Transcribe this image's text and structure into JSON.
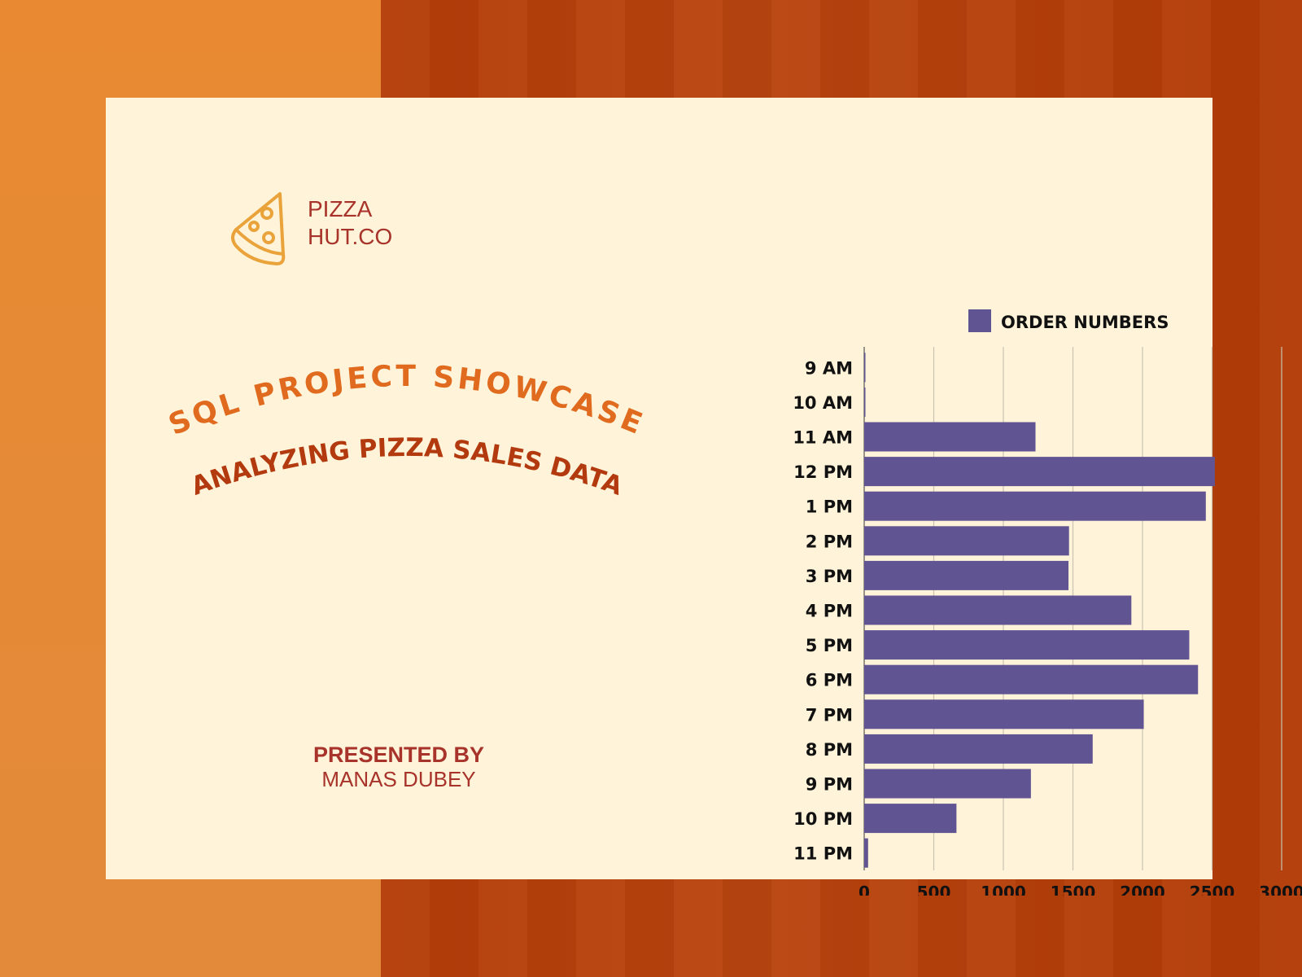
{
  "brand": {
    "line1": "PIZZA",
    "line2": "HUT.CO"
  },
  "headline": {
    "title": "SQL PROJECT SHOWCASE",
    "subtitle": "ANALYZING PIZZA SALES DATA"
  },
  "presenter": {
    "label": "PRESENTED BY",
    "name": "MANAS DUBEY"
  },
  "colors": {
    "accent_orange": "#e06a1e",
    "title_red": "#b23a0e",
    "bar": "#615492",
    "card": "#fff3d9",
    "text_red": "#a8332a"
  },
  "chart_data": {
    "type": "bar",
    "orientation": "horizontal",
    "categories": [
      "9 AM",
      "10 AM",
      "11 AM",
      "12 PM",
      "1 PM",
      "2 PM",
      "3 PM",
      "4 PM",
      "5 PM",
      "6 PM",
      "7 PM",
      "8 PM",
      "9 PM",
      "10 PM",
      "11 PM"
    ],
    "series": [
      {
        "name": "ORDER NUMBERS",
        "values": [
          1,
          8,
          1231,
          2520,
          2455,
          1472,
          1468,
          1920,
          2336,
          2399,
          2009,
          1642,
          1198,
          663,
          28
        ]
      }
    ],
    "xlim": [
      0,
      3000
    ],
    "xticks": [
      0,
      500,
      1000,
      1500,
      2000,
      2500,
      3000
    ],
    "grid": true,
    "legend": "top"
  }
}
